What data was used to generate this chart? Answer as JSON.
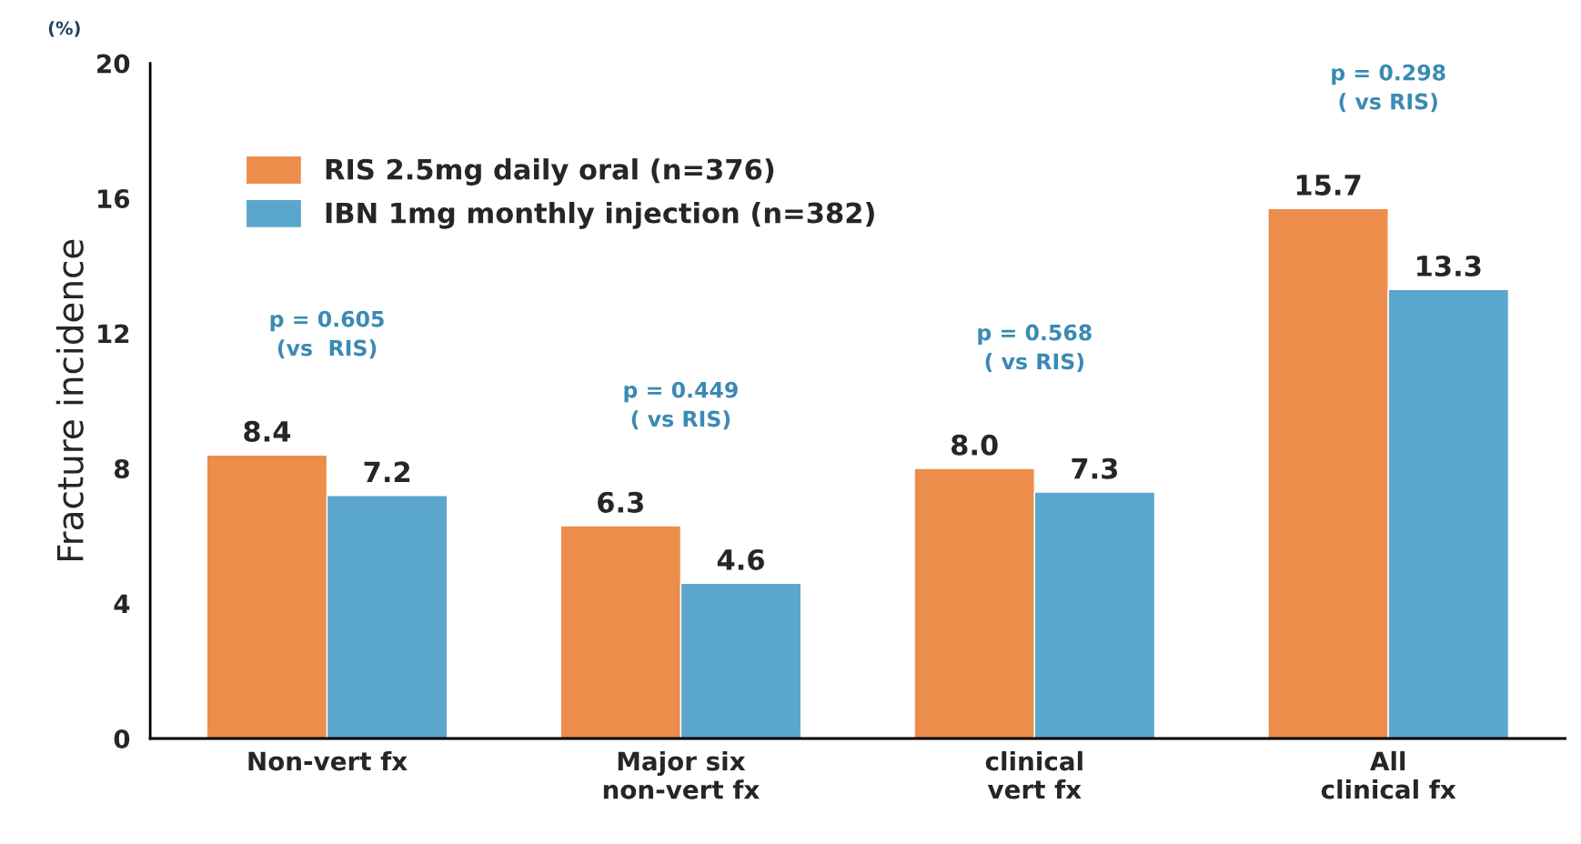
{
  "chart_data": {
    "type": "bar",
    "ylabel": "Fracture incidence",
    "categories": [
      "Non-vert fx",
      "Major six\nnon-vert fx",
      "clinical\nvert fx",
      "All\nclinical fx"
    ],
    "series": [
      {
        "name": "RIS 2.5mg daily oral (n=376)",
        "color": "#ec8d4c",
        "values": [
          8.4,
          6.3,
          8.0,
          15.7
        ],
        "value_labels": [
          "8.4",
          "6.3",
          "8.0",
          "15.7"
        ]
      },
      {
        "name": "IBN 1mg monthly injection (n=382)",
        "color": "#5aa6cc",
        "values": [
          7.2,
          4.6,
          7.3,
          13.3
        ],
        "value_labels": [
          "7.2",
          "4.6",
          "7.3",
          "13.3"
        ]
      }
    ],
    "ylim": [
      0,
      20
    ],
    "yticks": [
      0,
      4,
      8,
      12,
      16,
      20
    ],
    "legend": "top left",
    "grid": false,
    "annotations": [
      "(%)",
      "p = 0.605\n(vs  RIS)",
      "p = 0.449\n( vs RIS)",
      "p = 0.568\n( vs RIS)",
      "p = 0.298\n( vs RIS)"
    ]
  }
}
